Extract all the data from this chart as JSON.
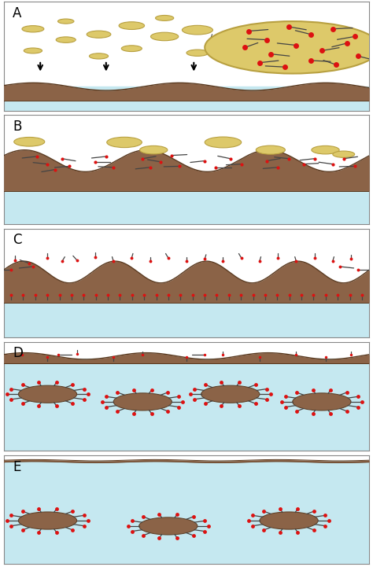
{
  "bg_color": "#ffffff",
  "water_color": "#c5e8f0",
  "oil_color": "#8B6347",
  "oil_dark": "#5a3a20",
  "dispersant_dot_color": "#dd1111",
  "dispersant_tail_color": "#444444",
  "droplet_fill": "#ddc96a",
  "droplet_edge": "#b8a040",
  "label_fontsize": 12,
  "panel_labels": [
    "A",
    "B",
    "C",
    "D",
    "E"
  ]
}
